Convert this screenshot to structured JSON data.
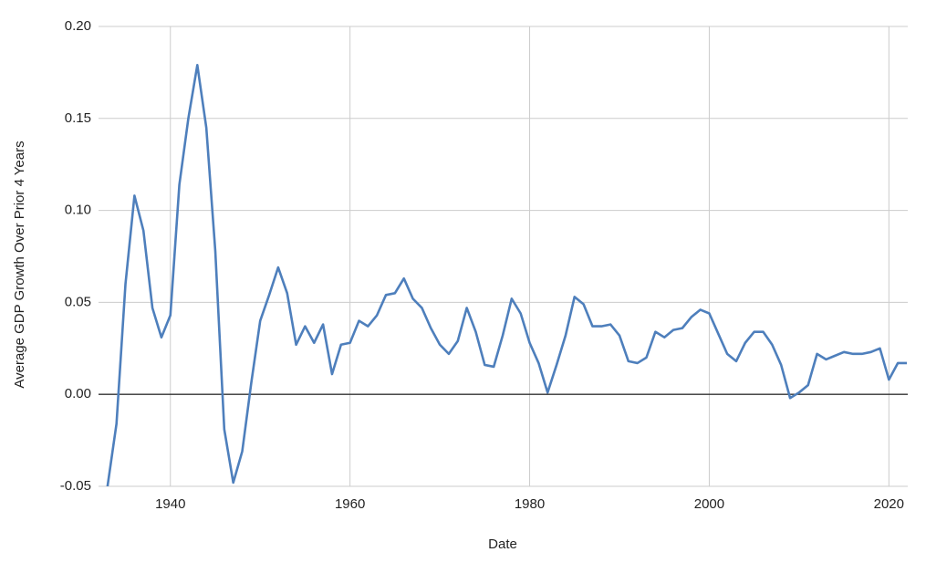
{
  "chart_data": {
    "type": "line",
    "x_label": "Date",
    "y_label": "Average GDP Growth Over Prior 4 Years",
    "x": [
      1933,
      1934,
      1935,
      1936,
      1937,
      1938,
      1939,
      1940,
      1941,
      1942,
      1943,
      1944,
      1945,
      1946,
      1947,
      1948,
      1949,
      1950,
      1951,
      1952,
      1953,
      1954,
      1955,
      1956,
      1957,
      1958,
      1959,
      1960,
      1961,
      1962,
      1963,
      1964,
      1965,
      1966,
      1967,
      1968,
      1969,
      1970,
      1971,
      1972,
      1973,
      1974,
      1975,
      1976,
      1977,
      1978,
      1979,
      1980,
      1981,
      1982,
      1983,
      1984,
      1985,
      1986,
      1987,
      1988,
      1989,
      1990,
      1991,
      1992,
      1993,
      1994,
      1995,
      1996,
      1997,
      1998,
      1999,
      2000,
      2001,
      2002,
      2003,
      2004,
      2005,
      2006,
      2007,
      2008,
      2009,
      2010,
      2011,
      2012,
      2013,
      2014,
      2015,
      2016,
      2017,
      2018,
      2019,
      2020,
      2021,
      2022
    ],
    "series": [
      {
        "color": "#4e7fbc",
        "values": [
          -0.05,
          -0.016,
          0.06,
          0.108,
          0.089,
          0.047,
          0.031,
          0.043,
          0.114,
          0.15,
          0.179,
          0.145,
          0.078,
          -0.019,
          -0.048,
          -0.031,
          0.006,
          0.04,
          0.054,
          0.069,
          0.055,
          0.027,
          0.037,
          0.028,
          0.038,
          0.011,
          0.027,
          0.028,
          0.04,
          0.037,
          0.043,
          0.054,
          0.055,
          0.063,
          0.052,
          0.047,
          0.036,
          0.027,
          0.022,
          0.029,
          0.047,
          0.034,
          0.016,
          0.015,
          0.032,
          0.052,
          0.044,
          0.028,
          0.017,
          0.001,
          0.016,
          0.032,
          0.053,
          0.049,
          0.037,
          0.037,
          0.038,
          0.032,
          0.018,
          0.017,
          0.02,
          0.034,
          0.031,
          0.035,
          0.036,
          0.042,
          0.046,
          0.044,
          0.033,
          0.022,
          0.018,
          0.028,
          0.034,
          0.034,
          0.027,
          0.016,
          -0.002,
          0.001,
          0.005,
          0.022,
          0.019,
          0.021,
          0.023,
          0.022,
          0.022,
          0.023,
          0.025,
          0.008,
          0.017,
          0.017
        ]
      }
    ],
    "xlim": [
      1932,
      2022.1
    ],
    "ylim": [
      -0.05,
      0.2
    ],
    "xticks": [
      1940,
      1960,
      1980,
      2000,
      2020
    ],
    "yticks": [
      -0.05,
      {
        "value": 0,
        "label": "0.00"
      },
      0.05,
      {
        "value": 0.1,
        "label": "0.10"
      },
      0.15,
      {
        "value": 0.2,
        "label": "0.20"
      }
    ],
    "grid": true
  }
}
